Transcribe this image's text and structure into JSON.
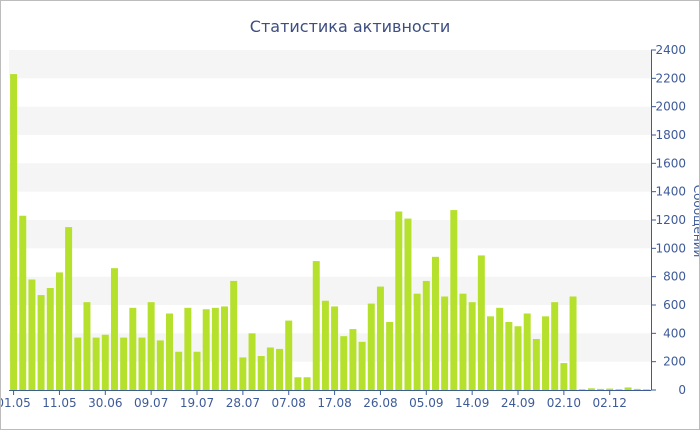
{
  "chart_data": {
    "type": "bar",
    "title": "Статистика активности",
    "ylabel": "Сообщений",
    "xlabel": "",
    "ylim": [
      0,
      2400
    ],
    "yticks": [
      0,
      200,
      400,
      600,
      800,
      1000,
      1200,
      1400,
      1600,
      1800,
      2000,
      2200,
      2400
    ],
    "x_tick_labels": [
      "01.05",
      "11.05",
      "30.06",
      "09.07",
      "19.07",
      "28.07",
      "07.08",
      "17.08",
      "26.08",
      "05.09",
      "14.09",
      "24.09",
      "02.10",
      "02.12"
    ],
    "x_tick_indices": [
      0,
      5,
      10,
      15,
      20,
      25,
      30,
      35,
      40,
      45,
      50,
      55,
      60,
      65
    ],
    "grid": "horizontal bands",
    "bar_color": "#b5e02c",
    "band_color": "#f5f5f5",
    "axis_color": "#3d5a99",
    "values": [
      2230,
      1230,
      780,
      670,
      720,
      830,
      1150,
      370,
      620,
      370,
      390,
      860,
      370,
      580,
      370,
      620,
      350,
      540,
      270,
      580,
      270,
      570,
      580,
      590,
      770,
      230,
      400,
      240,
      300,
      290,
      490,
      90,
      90,
      910,
      630,
      590,
      380,
      430,
      340,
      610,
      730,
      480,
      1260,
      1210,
      680,
      770,
      940,
      660,
      1270,
      680,
      620,
      950,
      520,
      580,
      480,
      450,
      540,
      360,
      520,
      620,
      190,
      660,
      5,
      12,
      8,
      10,
      6,
      18,
      8,
      5
    ]
  }
}
